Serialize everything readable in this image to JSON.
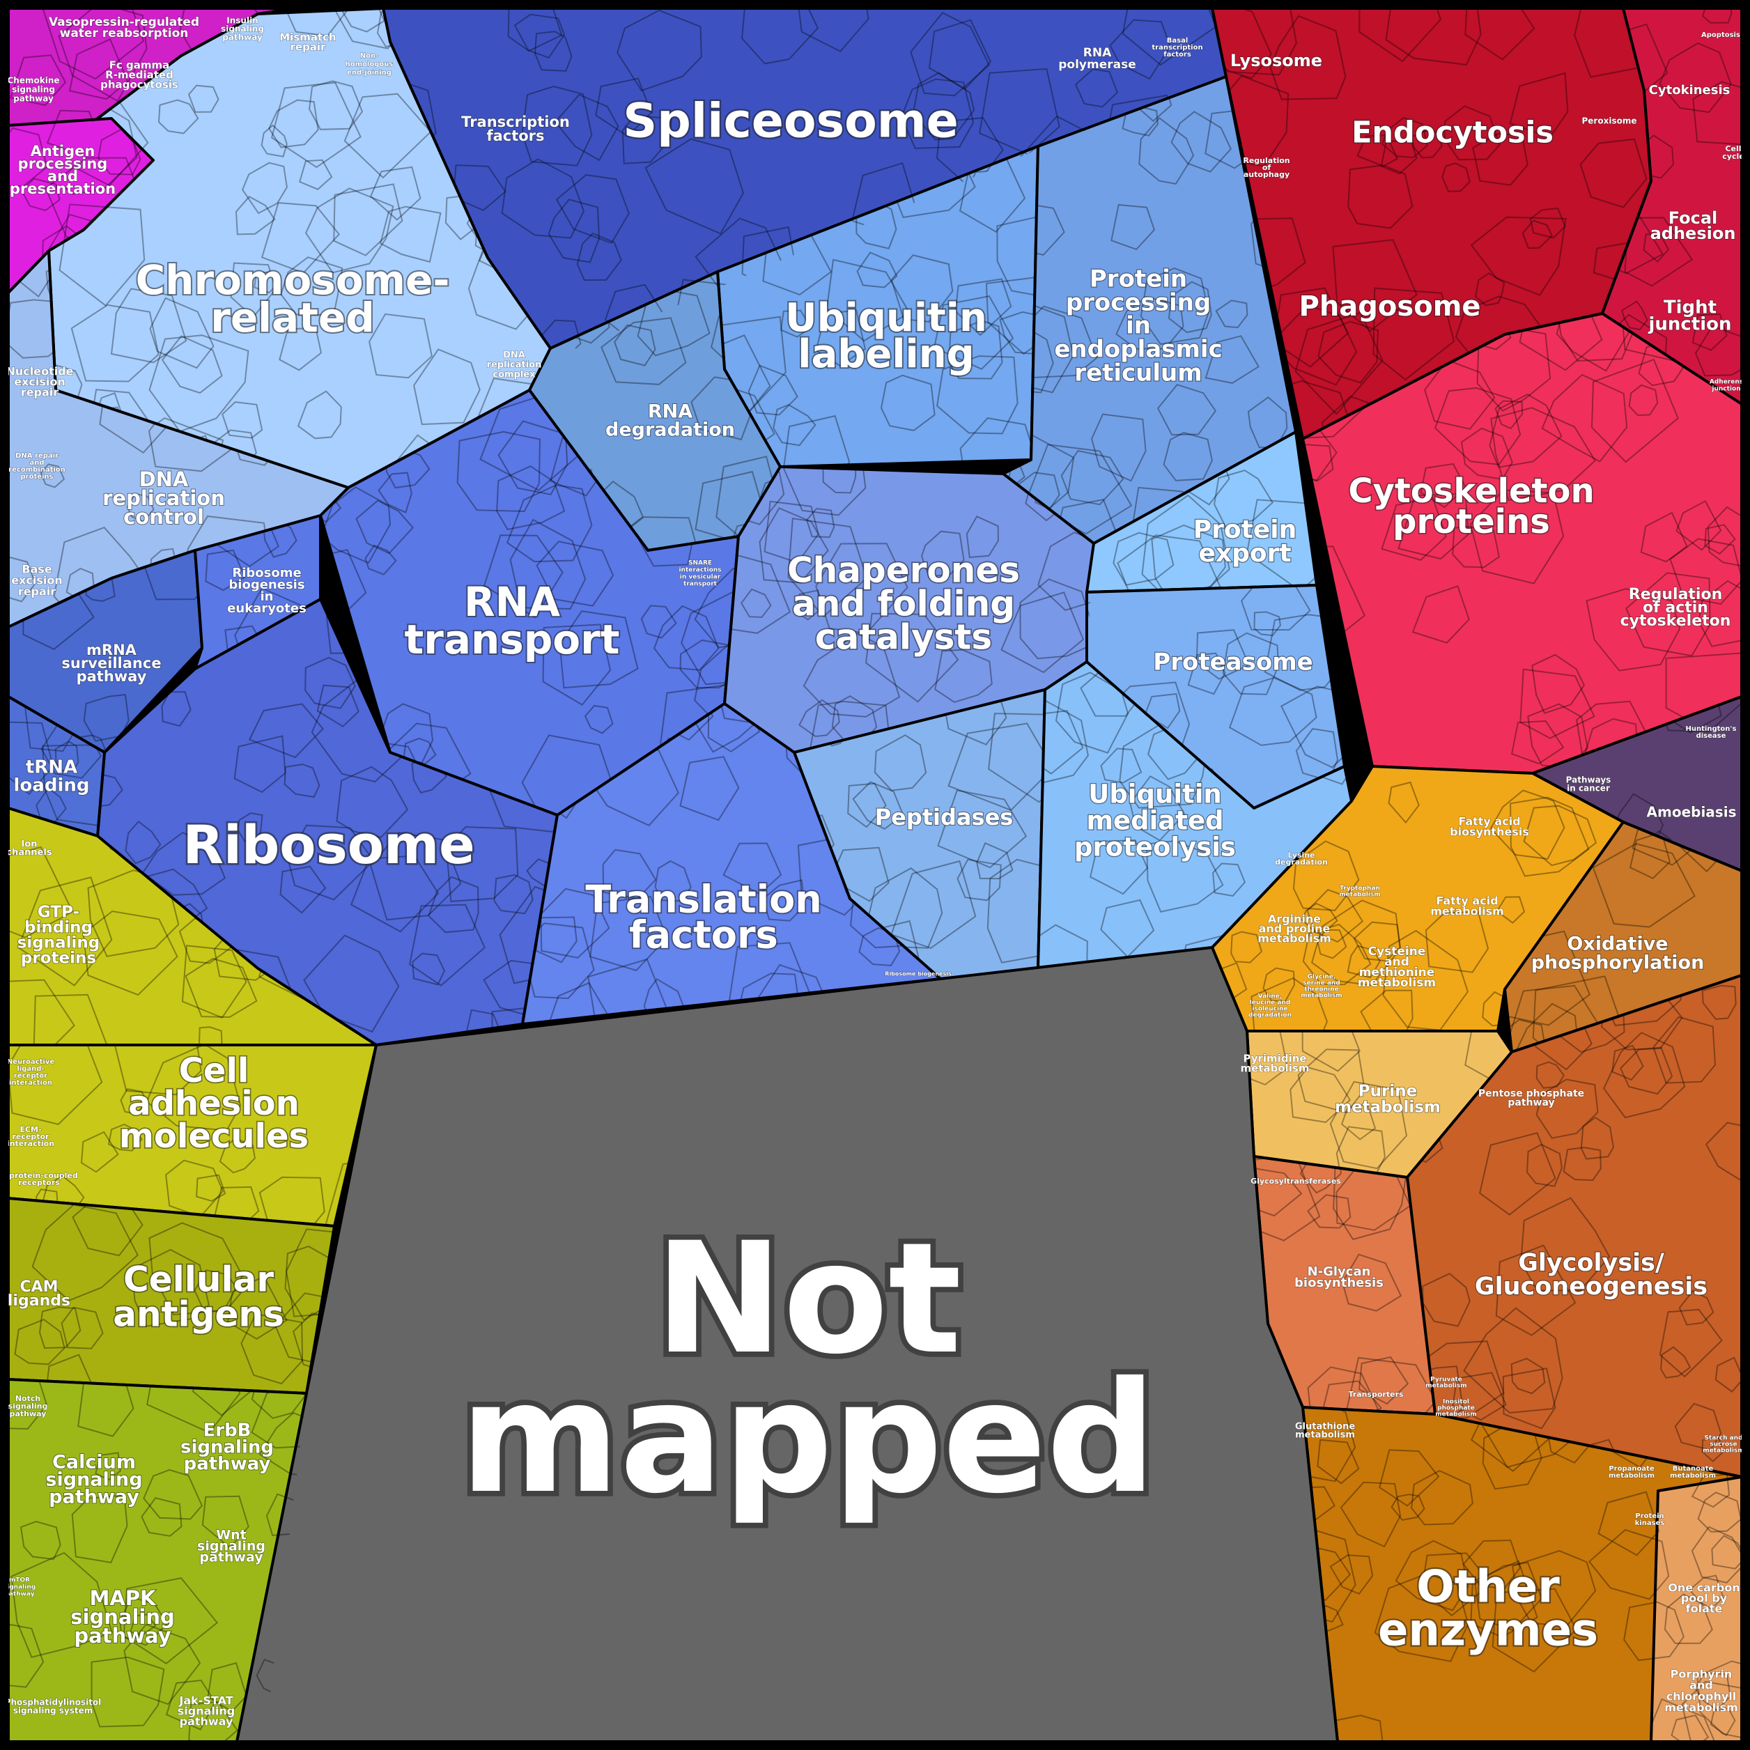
{
  "colors": {
    "frame": "#000000",
    "not_mapped": "#666666",
    "spliceosome": "#3d52c0",
    "chromosome": "#a9d0ff",
    "ubiquitin_label": "#74a8f0",
    "protein_proc": "#72a0e6",
    "rna_degradation": "#6f9edc",
    "rna_transport": "#5a78e6",
    "ribosome": "#5068d8",
    "translation": "#6484ee",
    "chaperones": "#7a98e8",
    "protein_export": "#8ec8ff",
    "proteasome": "#7eb0f4",
    "peptidases": "#86b4ee",
    "ub_proteolysis": "#88c0fa",
    "dna_replication": "#9ebff2",
    "mrna_surv": "#4a6ad0",
    "trna": "#5070d8",
    "antigen": "#e020e0",
    "fc_gamma": "#d020c8",
    "red_main": "#c0102a",
    "cytoskeleton": "#f0305a",
    "focal": "#d01640",
    "purple": "#5a4070",
    "cell_adhesion": "#c8c818",
    "cellular_antigens": "#a8b010",
    "calcium": "#a0b010",
    "erbb": "#98b40c",
    "mapk": "#9cb818",
    "orange_light": "#f0a818",
    "oxidative": "#c87828",
    "purine": "#f0c060",
    "glycolysis": "#c86028",
    "nglycan": "#e0784a",
    "other_enzymes": "#c87808",
    "porphyrin": "#e8a060"
  },
  "labels": {
    "not_mapped_1": "Not",
    "not_mapped_2": "mapped",
    "spliceosome": "Spliceosome",
    "chromosome_1": "Chromosome-",
    "chromosome_2": "related",
    "ubiquitin_labeling_1": "Ubiquitin",
    "ubiquitin_labeling_2": "labeling",
    "protein_processing_1": "Protein",
    "protein_processing_2": "processing",
    "protein_processing_3": "in",
    "protein_processing_4": "endoplasmic",
    "protein_processing_5": "reticulum",
    "rna_degradation_1": "RNA",
    "rna_degradation_2": "degradation",
    "rna_transport_1": "RNA",
    "rna_transport_2": "transport",
    "chaperones_1": "Chaperones",
    "chaperones_2": "and folding",
    "chaperones_3": "catalysts",
    "protein_export_1": "Protein",
    "protein_export_2": "export",
    "proteasome": "Proteasome",
    "ribosome": "Ribosome",
    "translation_factors_1": "Translation",
    "translation_factors_2": "factors",
    "peptidases": "Peptidases",
    "ub_proteolysis_1": "Ubiquitin",
    "ub_proteolysis_2": "mediated",
    "ub_proteolysis_3": "proteolysis",
    "transcription_factors_1": "Transcription",
    "transcription_factors_2": "factors",
    "rna_polymerase_1": "RNA",
    "rna_polymerase_2": "polymerase",
    "basal_tf_1": "Basal",
    "basal_tf_2": "transcription",
    "basal_tf_3": "factors",
    "mismatch_1": "Mismatch",
    "mismatch_2": "repair",
    "nhej_1": "Non-",
    "nhej_2": "homologous",
    "nhej_3": "end-joining",
    "dna_rep_complex_1": "DNA",
    "dna_rep_complex_2": "replication",
    "dna_rep_complex_3": "complex",
    "dna_rep_control_1": "DNA",
    "dna_rep_control_2": "replication",
    "dna_rep_control_3": "control",
    "nucleotide_excision_1": "Nucleotide",
    "nucleotide_excision_2": "excision",
    "nucleotide_excision_3": "repair",
    "dna_repair_proteins_1": "DNA repair",
    "dna_repair_proteins_2": "and",
    "dna_repair_proteins_3": "recombination",
    "dna_repair_proteins_4": "proteins",
    "base_excision_1": "Base",
    "base_excision_2": "excision",
    "base_excision_3": "repair",
    "ribosome_biogenesis_1": "Ribosome",
    "ribosome_biogenesis_2": "biogenesis",
    "ribosome_biogenesis_3": "in",
    "ribosome_biogenesis_4": "eukaryotes",
    "mrna_surveillance_1": "mRNA",
    "mrna_surveillance_2": "surveillance",
    "mrna_surveillance_3": "pathway",
    "trna_loading_1": "tRNA",
    "trna_loading_2": "loading",
    "snare_1": "SNARE",
    "snare_2": "interactions",
    "snare_3": "in vesicular",
    "snare_4": "transport",
    "ribosome_biogenesis_small": "Ribosome biogenesis",
    "vasopressin_1": "Vasopressin-regulated",
    "vasopressin_2": "water reabsorption",
    "insulin_1": "Insulin",
    "insulin_2": "signaling",
    "insulin_3": "pathway",
    "chemokine_1": "Chemokine",
    "chemokine_2": "signaling",
    "chemokine_3": "pathway",
    "fc_gamma_1": "Fc gamma",
    "fc_gamma_2": "R-mediated",
    "fc_gamma_3": "phagocytosis",
    "antigen_1": "Antigen",
    "antigen_2": "processing",
    "antigen_3": "and",
    "antigen_4": "presentation",
    "lysosome": "Lysosome",
    "endocytosis": "Endocytosis",
    "regulation_autophagy_1": "Regulation",
    "regulation_autophagy_2": "of",
    "regulation_autophagy_3": "autophagy",
    "peroxisome": "Peroxisome",
    "cytokinesis": "Cytokinesis",
    "apoptosis": "Apoptosis",
    "cell_cycle_1": "Cell",
    "cell_cycle_2": "cycle",
    "phagosome": "Phagosome",
    "focal_adhesion_1": "Focal",
    "focal_adhesion_2": "adhesion",
    "tight_junction_1": "Tight",
    "tight_junction_2": "junction",
    "adherens_1": "Adherens",
    "adherens_2": "junction",
    "cytoskeleton_proteins_1": "Cytoskeleton",
    "cytoskeleton_proteins_2": "proteins",
    "regulation_actin_1": "Regulation",
    "regulation_actin_2": "of actin",
    "regulation_actin_3": "cytoskeleton",
    "huntingtons_1": "Huntington's",
    "huntingtons_2": "disease",
    "pathways_cancer_1": "Pathways",
    "pathways_cancer_2": "in cancer",
    "amoebiasis": "Amoebiasis",
    "ion_channels_1": "Ion",
    "ion_channels_2": "channels",
    "gtp_binding_1": "GTP-",
    "gtp_binding_2": "binding",
    "gtp_binding_3": "signaling",
    "gtp_binding_4": "proteins",
    "neuroactive_1": "Neuroactive",
    "neuroactive_2": "ligand-",
    "neuroactive_3": "receptor",
    "neuroactive_4": "interaction",
    "ecm_1": "ECM-",
    "ecm_2": "receptor",
    "ecm_3": "interaction",
    "gpcr_1": "G protein-coupled",
    "gpcr_2": "receptors",
    "cell_adhesion_1": "Cell",
    "cell_adhesion_2": "adhesion",
    "cell_adhesion_3": "molecules",
    "cam_ligands_1": "CAM",
    "cam_ligands_2": "ligands",
    "cellular_antigens_1": "Cellular",
    "cellular_antigens_2": "antigens",
    "notch_1": "Notch",
    "notch_2": "signaling",
    "notch_3": "pathway",
    "calcium_1": "Calcium",
    "calcium_2": "signaling",
    "calcium_3": "pathway",
    "erbb_1": "ErbB",
    "erbb_2": "signaling",
    "erbb_3": "pathway",
    "wnt_1": "Wnt",
    "wnt_2": "signaling",
    "wnt_3": "pathway",
    "mapk_1": "MAPK",
    "mapk_2": "signaling",
    "mapk_3": "pathway",
    "mtor_1": "mTOR",
    "mtor_2": "signaling",
    "mtor_3": "pathway",
    "phosphatidylinositol_1": "Phosphatidylinositol",
    "phosphatidylinositol_2": "signaling system",
    "jak_1": "Jak-STAT",
    "jak_2": "signaling",
    "jak_3": "pathway",
    "fatty_biosyn_1": "Fatty acid",
    "fatty_biosyn_2": "biosynthesis",
    "fatty_metab_1": "Fatty acid",
    "fatty_metab_2": "metabolism",
    "lysine_1": "Lysine",
    "lysine_2": "degradation",
    "tryptophan_1": "Tryptophan",
    "tryptophan_2": "metabolism",
    "arginine_1": "Arginine",
    "arginine_2": "and proline",
    "arginine_3": "metabolism",
    "cysteine_1": "Cysteine",
    "cysteine_2": "and",
    "cysteine_3": "methionine",
    "cysteine_4": "metabolism",
    "valine_1": "Valine,",
    "valine_2": "leucine and",
    "valine_3": "isoleucine",
    "valine_4": "degradation",
    "glycine_1": "Glycine,",
    "glycine_2": "serine and",
    "glycine_3": "threonine",
    "glycine_4": "metabolism",
    "oxidative_1": "Oxidative",
    "oxidative_2": "phosphorylation",
    "pyrimidine_1": "Pyrimidine",
    "pyrimidine_2": "metabolism",
    "purine_1": "Purine",
    "purine_2": "metabolism",
    "pentose_1": "Pentose phosphate",
    "pentose_2": "pathway",
    "glycosyltransferases": "Glycosyltransferases",
    "nglycan_1": "N-Glycan",
    "nglycan_2": "biosynthesis",
    "glycolysis_1": "Glycolysis/",
    "glycolysis_2": "Gluconeogenesis",
    "transporters": "Transporters",
    "pyruvate_1": "Pyruvate",
    "pyruvate_2": "metabolism",
    "inositol_1": "Inositol",
    "inositol_2": "phosphate",
    "inositol_3": "metabolism",
    "glutathione_1": "Glutathione",
    "glutathione_2": "metabolism",
    "propanoate_1": "Propanoate",
    "propanoate_2": "metabolism",
    "butanoate_1": "Butanoate",
    "butanoate_2": "metabolism",
    "starch_1": "Starch and",
    "starch_2": "sucrose",
    "starch_3": "metabolism",
    "protein_kinases_1": "Protein",
    "protein_kinases_2": "kinases",
    "other_enzymes_1": "Other",
    "other_enzymes_2": "enzymes",
    "one_carbon_1": "One carbon",
    "one_carbon_2": "pool by",
    "one_carbon_3": "folate",
    "porphyrin_1": "Porphyrin",
    "porphyrin_2": "and",
    "porphyrin_3": "chlorophyll",
    "porphyrin_4": "metabolism"
  }
}
